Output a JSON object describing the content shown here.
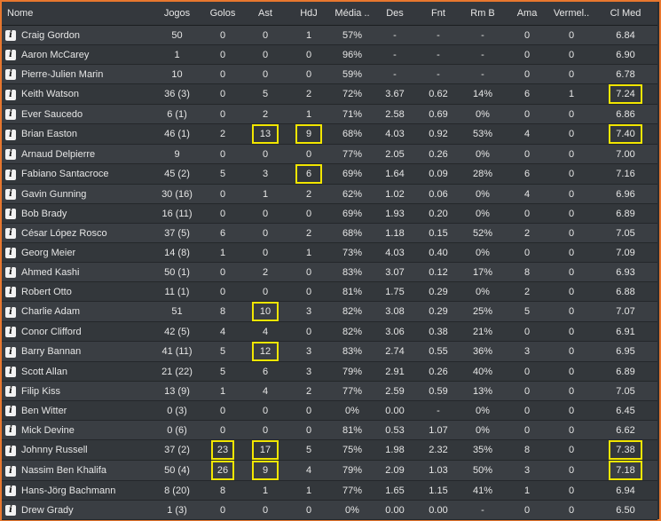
{
  "columns": [
    "Nome",
    "Jogos",
    "Golos",
    "Ast",
    "HdJ",
    "Média ..",
    "Des",
    "Fnt",
    "Rm B",
    "Ama",
    "Vermel..",
    "Cl Med"
  ],
  "highlight_color": "#f2e600",
  "info_icon": "info-icon",
  "rows": [
    [
      "Craig Gordon",
      "50",
      "0",
      "0",
      "1",
      "57%",
      "-",
      "-",
      "-",
      "0",
      "0",
      "6.84"
    ],
    [
      "Aaron McCarey",
      "1",
      "0",
      "0",
      "0",
      "96%",
      "-",
      "-",
      "-",
      "0",
      "0",
      "6.90"
    ],
    [
      "Pierre-Julien Marin",
      "10",
      "0",
      "0",
      "0",
      "59%",
      "-",
      "-",
      "-",
      "0",
      "0",
      "6.78"
    ],
    [
      "Keith Watson",
      "36 (3)",
      "0",
      "5",
      "2",
      "72%",
      "3.67",
      "0.62",
      "14%",
      "6",
      "1",
      "7.24"
    ],
    [
      "Ever Saucedo",
      "6 (1)",
      "0",
      "2",
      "1",
      "71%",
      "2.58",
      "0.69",
      "0%",
      "0",
      "0",
      "6.86"
    ],
    [
      "Brian Easton",
      "46 (1)",
      "2",
      "13",
      "9",
      "68%",
      "4.03",
      "0.92",
      "53%",
      "4",
      "0",
      "7.40"
    ],
    [
      "Arnaud Delpierre",
      "9",
      "0",
      "0",
      "0",
      "77%",
      "2.05",
      "0.26",
      "0%",
      "0",
      "0",
      "7.00"
    ],
    [
      "Fabiano Santacroce",
      "45 (2)",
      "5",
      "3",
      "6",
      "69%",
      "1.64",
      "0.09",
      "28%",
      "6",
      "0",
      "7.16"
    ],
    [
      "Gavin Gunning",
      "30 (16)",
      "0",
      "1",
      "2",
      "62%",
      "1.02",
      "0.06",
      "0%",
      "4",
      "0",
      "6.96"
    ],
    [
      "Bob Brady",
      "16 (11)",
      "0",
      "0",
      "0",
      "69%",
      "1.93",
      "0.20",
      "0%",
      "0",
      "0",
      "6.89"
    ],
    [
      "César López Rosco",
      "37 (5)",
      "6",
      "0",
      "2",
      "68%",
      "1.18",
      "0.15",
      "52%",
      "2",
      "0",
      "7.05"
    ],
    [
      "Georg Meier",
      "14 (8)",
      "1",
      "0",
      "1",
      "73%",
      "4.03",
      "0.40",
      "0%",
      "0",
      "0",
      "7.09"
    ],
    [
      "Ahmed Kashi",
      "50 (1)",
      "0",
      "2",
      "0",
      "83%",
      "3.07",
      "0.12",
      "17%",
      "8",
      "0",
      "6.93"
    ],
    [
      "Robert Otto",
      "11 (1)",
      "0",
      "0",
      "0",
      "81%",
      "1.75",
      "0.29",
      "0%",
      "2",
      "0",
      "6.88"
    ],
    [
      "Charlie Adam",
      "51",
      "8",
      "10",
      "3",
      "82%",
      "3.08",
      "0.29",
      "25%",
      "5",
      "0",
      "7.07"
    ],
    [
      "Conor Clifford",
      "42 (5)",
      "4",
      "4",
      "0",
      "82%",
      "3.06",
      "0.38",
      "21%",
      "0",
      "0",
      "6.91"
    ],
    [
      "Barry Bannan",
      "41 (11)",
      "5",
      "12",
      "3",
      "83%",
      "2.74",
      "0.55",
      "36%",
      "3",
      "0",
      "6.95"
    ],
    [
      "Scott Allan",
      "21 (22)",
      "5",
      "6",
      "3",
      "79%",
      "2.91",
      "0.26",
      "40%",
      "0",
      "0",
      "6.89"
    ],
    [
      "Filip Kiss",
      "13 (9)",
      "1",
      "4",
      "2",
      "77%",
      "2.59",
      "0.59",
      "13%",
      "0",
      "0",
      "7.05"
    ],
    [
      "Ben Witter",
      "0 (3)",
      "0",
      "0",
      "0",
      "0%",
      "0.00",
      "-",
      "0%",
      "0",
      "0",
      "6.45"
    ],
    [
      "Mick Devine",
      "0 (6)",
      "0",
      "0",
      "0",
      "81%",
      "0.53",
      "1.07",
      "0%",
      "0",
      "0",
      "6.62"
    ],
    [
      "Johnny Russell",
      "37 (2)",
      "23",
      "17",
      "5",
      "75%",
      "1.98",
      "2.32",
      "35%",
      "8",
      "0",
      "7.38"
    ],
    [
      "Nassim Ben Khalifa",
      "50 (4)",
      "26",
      "9",
      "4",
      "79%",
      "2.09",
      "1.03",
      "50%",
      "3",
      "0",
      "7.18"
    ],
    [
      "Hans-Jörg Bachmann",
      "8 (20)",
      "8",
      "1",
      "1",
      "77%",
      "1.65",
      "1.15",
      "41%",
      "1",
      "0",
      "6.94"
    ],
    [
      "Drew Grady",
      "1 (3)",
      "0",
      "0",
      "0",
      "0%",
      "0.00",
      "0.00",
      "-",
      "0",
      "0",
      "6.50"
    ]
  ],
  "highlights": [
    [
      3,
      11
    ],
    [
      5,
      3
    ],
    [
      5,
      4
    ],
    [
      5,
      11
    ],
    [
      7,
      4
    ],
    [
      14,
      3
    ],
    [
      16,
      3
    ],
    [
      21,
      2
    ],
    [
      21,
      3
    ],
    [
      21,
      11
    ],
    [
      22,
      2
    ],
    [
      22,
      3
    ],
    [
      22,
      11
    ]
  ]
}
